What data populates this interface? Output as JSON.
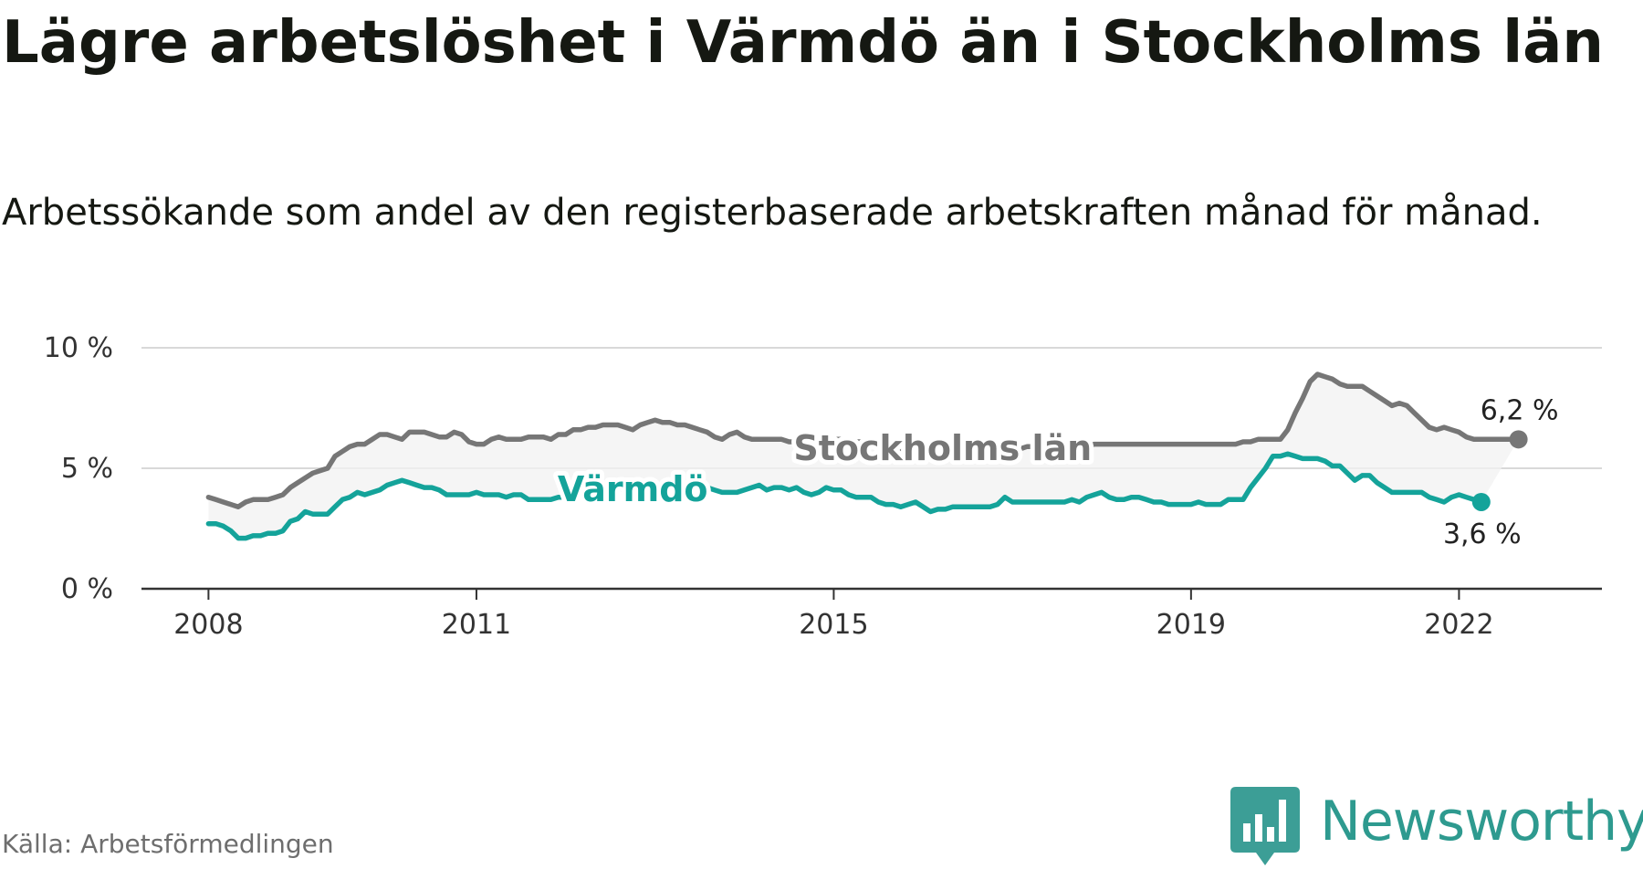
{
  "title": "Lägre arbetslöshet i Värmdö än i Stockholms län",
  "subtitle": "Arbetssökande som andel av den registerbaserade arbetskraften månad för månad.",
  "source": "Källa: Arbetsförmedlingen",
  "brand": {
    "name": "Newsworthy",
    "icon": "newsworthy-logo-icon",
    "color": "#2e9a8f"
  },
  "chart_data": {
    "type": "line",
    "title": "Lägre arbetslöshet i Värmdö än i Stockholms län",
    "xlabel": "",
    "ylabel": "",
    "x_start": 2008.0,
    "x_step": 0.08333,
    "xlim": [
      2007.25,
      2023.6
    ],
    "ylim": [
      0,
      10
    ],
    "yticks": [
      0,
      5,
      10
    ],
    "ytick_labels": [
      "0 %",
      "5 %",
      "10 %"
    ],
    "xticks": [
      2008,
      2011,
      2015,
      2019,
      2022
    ],
    "xtick_labels": [
      "2008",
      "2011",
      "2015",
      "2019",
      "2022"
    ],
    "grid": true,
    "series": [
      {
        "name": "Stockholms län",
        "color": "#767676",
        "label": "Stockholms län",
        "label_at_x": 2016.22,
        "end_label": "6,2 %",
        "values": [
          3.8,
          3.7,
          3.6,
          3.5,
          3.4,
          3.6,
          3.7,
          3.7,
          3.7,
          3.8,
          3.9,
          4.2,
          4.4,
          4.6,
          4.8,
          4.9,
          5.0,
          5.5,
          5.7,
          5.9,
          6.0,
          6.0,
          6.2,
          6.4,
          6.4,
          6.3,
          6.2,
          6.5,
          6.5,
          6.5,
          6.4,
          6.3,
          6.3,
          6.5,
          6.4,
          6.1,
          6.0,
          6.0,
          6.2,
          6.3,
          6.2,
          6.2,
          6.2,
          6.3,
          6.3,
          6.3,
          6.2,
          6.4,
          6.4,
          6.6,
          6.6,
          6.7,
          6.7,
          6.8,
          6.8,
          6.8,
          6.7,
          6.6,
          6.8,
          6.9,
          7.0,
          6.9,
          6.9,
          6.8,
          6.8,
          6.7,
          6.6,
          6.5,
          6.3,
          6.2,
          6.4,
          6.5,
          6.3,
          6.2,
          6.2,
          6.2,
          6.2,
          6.2,
          6.1,
          6.1,
          6.2,
          6.3,
          6.3,
          6.3,
          6.2,
          6.2,
          6.2,
          6.1,
          6.1,
          6.0,
          6.0,
          6.0,
          5.9,
          5.8,
          5.8,
          5.9,
          5.9,
          5.8,
          5.8,
          5.8,
          5.8,
          5.8,
          5.8,
          5.8,
          5.9,
          5.8,
          5.8,
          5.9,
          5.9,
          5.8,
          5.9,
          5.9,
          5.9,
          5.9,
          5.9,
          5.9,
          5.9,
          5.9,
          5.9,
          6.0,
          6.0,
          6.0,
          6.0,
          6.0,
          6.0,
          6.0,
          6.0,
          6.0,
          6.0,
          6.0,
          6.0,
          6.0,
          6.0,
          6.0,
          6.0,
          6.0,
          6.0,
          6.0,
          6.0,
          6.1,
          6.1,
          6.2,
          6.2,
          6.2,
          6.2,
          6.6,
          7.3,
          7.9,
          8.6,
          8.9,
          8.8,
          8.7,
          8.5,
          8.4,
          8.4,
          8.4,
          8.2,
          8.0,
          7.8,
          7.6,
          7.7,
          7.6,
          7.3,
          7.0,
          6.7,
          6.6,
          6.7,
          6.6,
          6.5,
          6.3,
          6.2,
          6.2,
          6.2,
          6.2,
          6.2,
          6.2,
          6.2
        ]
      },
      {
        "name": "Värmdö",
        "color": "#14a39a",
        "label": "Värmdö",
        "label_at_x": 2012.75,
        "end_label": "3,6 %",
        "values": [
          2.7,
          2.7,
          2.6,
          2.4,
          2.1,
          2.1,
          2.2,
          2.2,
          2.3,
          2.3,
          2.4,
          2.8,
          2.9,
          3.2,
          3.1,
          3.1,
          3.1,
          3.4,
          3.7,
          3.8,
          4.0,
          3.9,
          4.0,
          4.1,
          4.3,
          4.4,
          4.5,
          4.4,
          4.3,
          4.2,
          4.2,
          4.1,
          3.9,
          3.9,
          3.9,
          3.9,
          4.0,
          3.9,
          3.9,
          3.9,
          3.8,
          3.9,
          3.9,
          3.7,
          3.7,
          3.7,
          3.7,
          3.8,
          3.8,
          3.9,
          4.0,
          4.1,
          4.1,
          4.2,
          4.2,
          4.2,
          4.1,
          4.1,
          4.2,
          4.2,
          4.2,
          4.1,
          4.1,
          4.2,
          4.2,
          4.3,
          4.2,
          4.2,
          4.1,
          4.0,
          4.0,
          4.0,
          4.1,
          4.2,
          4.3,
          4.1,
          4.2,
          4.2,
          4.1,
          4.2,
          4.0,
          3.9,
          4.0,
          4.2,
          4.1,
          4.1,
          3.9,
          3.8,
          3.8,
          3.8,
          3.6,
          3.5,
          3.5,
          3.4,
          3.5,
          3.6,
          3.4,
          3.2,
          3.3,
          3.3,
          3.4,
          3.4,
          3.4,
          3.4,
          3.4,
          3.4,
          3.5,
          3.8,
          3.6,
          3.6,
          3.6,
          3.6,
          3.6,
          3.6,
          3.6,
          3.6,
          3.7,
          3.6,
          3.8,
          3.9,
          4.0,
          3.8,
          3.7,
          3.7,
          3.8,
          3.8,
          3.7,
          3.6,
          3.6,
          3.5,
          3.5,
          3.5,
          3.5,
          3.6,
          3.5,
          3.5,
          3.5,
          3.7,
          3.7,
          3.7,
          4.2,
          4.6,
          5.0,
          5.5,
          5.5,
          5.6,
          5.5,
          5.4,
          5.4,
          5.4,
          5.3,
          5.1,
          5.1,
          4.8,
          4.5,
          4.7,
          4.7,
          4.4,
          4.2,
          4.0,
          4.0,
          4.0,
          4.0,
          4.0,
          3.8,
          3.7,
          3.6,
          3.8,
          3.9,
          3.8,
          3.7,
          3.6
        ]
      }
    ]
  }
}
